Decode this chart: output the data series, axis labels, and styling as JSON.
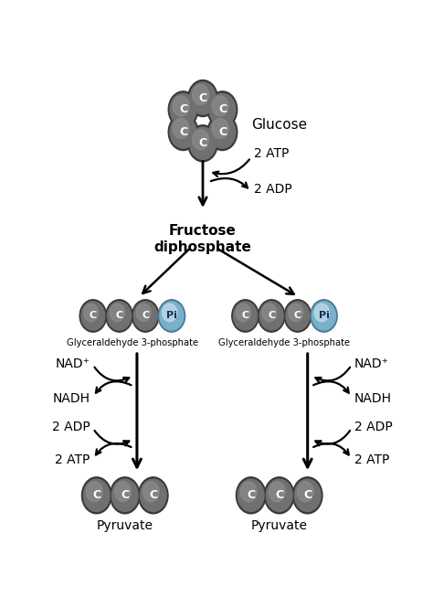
{
  "bg_color": "#ffffff",
  "carbon_outer": "#3a3a3a",
  "carbon_mid": "#707070",
  "carbon_inner": "#909090",
  "phosphate_outer": "#4a7a9a",
  "phosphate_mid": "#7ab0c8",
  "phosphate_inner": "#c5e0ee",
  "text_color": "#000000",
  "glucose_label": "Glucose",
  "fructose_label": "Fructose\ndiphosphate",
  "glyceraldehyde_label": "Glyceraldehyde 3-phosphate",
  "pyruvate_label": "Pyruvate",
  "atp_label": "2 ATP",
  "adp_label": "2 ADP",
  "nad_label": "NAD⁺",
  "nadh_label": "NADH",
  "adp2_label": "2 ADP",
  "atp2_label": "2 ATP",
  "carbon_label": "C",
  "phosphate_label": "Pi"
}
